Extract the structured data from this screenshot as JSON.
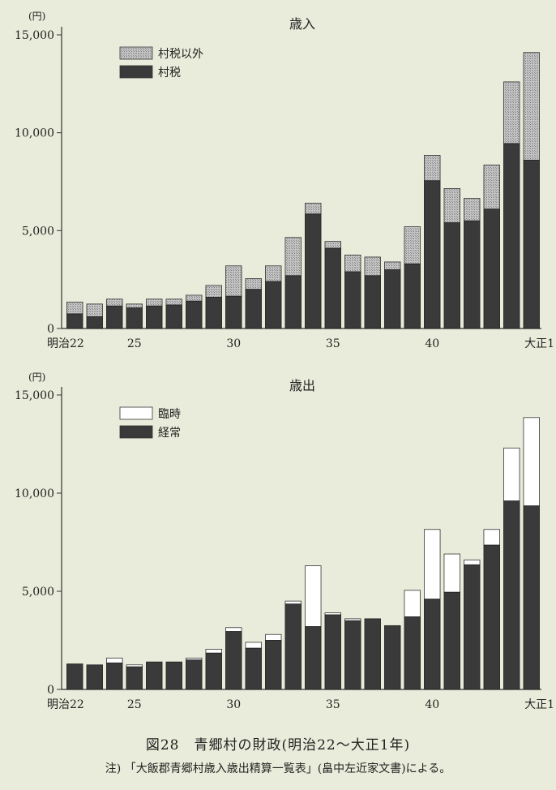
{
  "figure": {
    "title": "図28　青郷村の財政(明治22〜大正1年)",
    "note": "注) 「大飯郡青郷村歳入歳出精算一覧表」(畠中左近家文書)による。"
  },
  "colors": {
    "background": "#e9ecda",
    "dark": "#3a3a3a",
    "hatch": "#b4b4b4",
    "white": "#ffffff"
  },
  "chart_data": [
    {
      "type": "bar",
      "stacked": true,
      "title": "歳入",
      "unit": "(円)",
      "ylim": [
        0,
        15000
      ],
      "yticks": [
        0,
        5000,
        10000,
        15000
      ],
      "ytick_labels": [
        "0",
        "5,000",
        "10,000",
        "15,000"
      ],
      "xtick_labels": [
        {
          "index": 0,
          "label": "明治22"
        },
        {
          "index": 3,
          "label": "25"
        },
        {
          "index": 8,
          "label": "30"
        },
        {
          "index": 13,
          "label": "35"
        },
        {
          "index": 18,
          "label": "40"
        },
        {
          "index": 23,
          "label": "大正1"
        }
      ],
      "categories": [
        "1889",
        "1890",
        "1891",
        "1892",
        "1893",
        "1894",
        "1895",
        "1896",
        "1897",
        "1898",
        "1899",
        "1900",
        "1901",
        "1902",
        "1903",
        "1904",
        "1905",
        "1906",
        "1907",
        "1908",
        "1909",
        "1910",
        "1911",
        "1912"
      ],
      "legend": [
        "村税以外",
        "村税"
      ],
      "series": [
        {
          "name": "村税",
          "values": [
            750,
            600,
            1150,
            1050,
            1150,
            1200,
            1400,
            1600,
            1650,
            2000,
            2400,
            2700,
            5850,
            4100,
            2900,
            2700,
            3000,
            3300,
            7550,
            5400,
            5500,
            6100,
            9450,
            8600
          ]
        },
        {
          "name": "村税以外",
          "values": [
            600,
            650,
            350,
            200,
            350,
            300,
            300,
            600,
            1550,
            550,
            800,
            1950,
            550,
            350,
            850,
            950,
            400,
            1900,
            1300,
            1750,
            1150,
            2250,
            3150,
            5500
          ]
        }
      ]
    },
    {
      "type": "bar",
      "stacked": true,
      "title": "歳出",
      "unit": "(円)",
      "ylim": [
        0,
        15000
      ],
      "yticks": [
        0,
        5000,
        10000,
        15000
      ],
      "ytick_labels": [
        "0",
        "5,000",
        "10,000",
        "15,000"
      ],
      "xtick_labels": [
        {
          "index": 0,
          "label": "明治22"
        },
        {
          "index": 3,
          "label": "25"
        },
        {
          "index": 8,
          "label": "30"
        },
        {
          "index": 13,
          "label": "35"
        },
        {
          "index": 18,
          "label": "40"
        },
        {
          "index": 23,
          "label": "大正1"
        }
      ],
      "categories": [
        "1889",
        "1890",
        "1891",
        "1892",
        "1893",
        "1894",
        "1895",
        "1896",
        "1897",
        "1898",
        "1899",
        "1900",
        "1901",
        "1902",
        "1903",
        "1904",
        "1905",
        "1906",
        "1907",
        "1908",
        "1909",
        "1910",
        "1911",
        "1912"
      ],
      "legend": [
        "臨時",
        "経常"
      ],
      "series": [
        {
          "name": "経常",
          "values": [
            1300,
            1250,
            1350,
            1150,
            1400,
            1400,
            1500,
            1850,
            2950,
            2100,
            2500,
            4350,
            3200,
            3800,
            3500,
            3600,
            3250,
            3700,
            4600,
            4950,
            6350,
            7350,
            9600,
            9350
          ]
        },
        {
          "name": "臨時",
          "values": [
            0,
            0,
            250,
            100,
            0,
            0,
            100,
            200,
            200,
            300,
            300,
            150,
            3100,
            100,
            100,
            0,
            0,
            1350,
            3550,
            1950,
            250,
            800,
            2700,
            4500
          ]
        }
      ]
    }
  ]
}
